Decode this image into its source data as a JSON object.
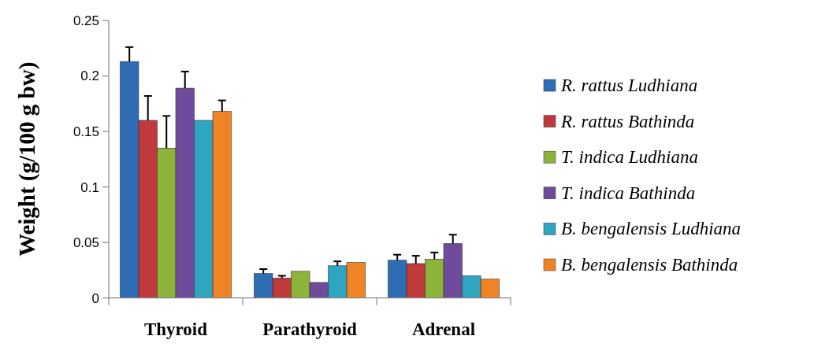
{
  "chart_data": {
    "type": "bar",
    "ylabel": "Weight (g/100 g bw)",
    "categories": [
      "Thyroid",
      "Parathyroid",
      "Adrenal"
    ],
    "ylim": [
      0,
      0.25
    ],
    "yticks": [
      0,
      0.05,
      0.1,
      0.15,
      0.2,
      0.25
    ],
    "grid": false,
    "legend": "right",
    "series": [
      {
        "name": "R. rattus Ludhiana",
        "color": "#2e6db4",
        "values": [
          0.213,
          0.022,
          0.034
        ],
        "errors": [
          [
            0.213,
            0.226
          ],
          [
            0.022,
            0.026
          ],
          [
            0.034,
            0.039
          ]
        ]
      },
      {
        "name": "R. rattus Bathinda",
        "color": "#c0393b",
        "values": [
          0.16,
          0.018,
          0.031
        ],
        "errors": [
          [
            0.16,
            0.182
          ],
          [
            0.018,
            0.02
          ],
          [
            0.031,
            0.038
          ]
        ]
      },
      {
        "name": "T. indica Ludhiana",
        "color": "#8db33a",
        "values": [
          0.135,
          0.024,
          0.035
        ],
        "errors": [
          [
            0.135,
            0.164
          ],
          null,
          [
            0.035,
            0.041
          ]
        ]
      },
      {
        "name": "T. indica Bathinda",
        "color": "#6e4c9b",
        "values": [
          0.189,
          0.014,
          0.049
        ],
        "errors": [
          [
            0.189,
            0.204
          ],
          null,
          [
            0.049,
            0.057
          ]
        ]
      },
      {
        "name": "B. bengalensis Ludhiana",
        "color": "#2fa5c2",
        "values": [
          0.16,
          0.029,
          0.02
        ],
        "errors": [
          null,
          [
            0.029,
            0.033
          ],
          null
        ]
      },
      {
        "name": "B. bengalensis Bathinda",
        "color": "#f08424",
        "values": [
          0.168,
          0.032,
          0.017
        ],
        "errors": [
          [
            0.168,
            0.178
          ],
          null,
          null
        ]
      }
    ]
  }
}
